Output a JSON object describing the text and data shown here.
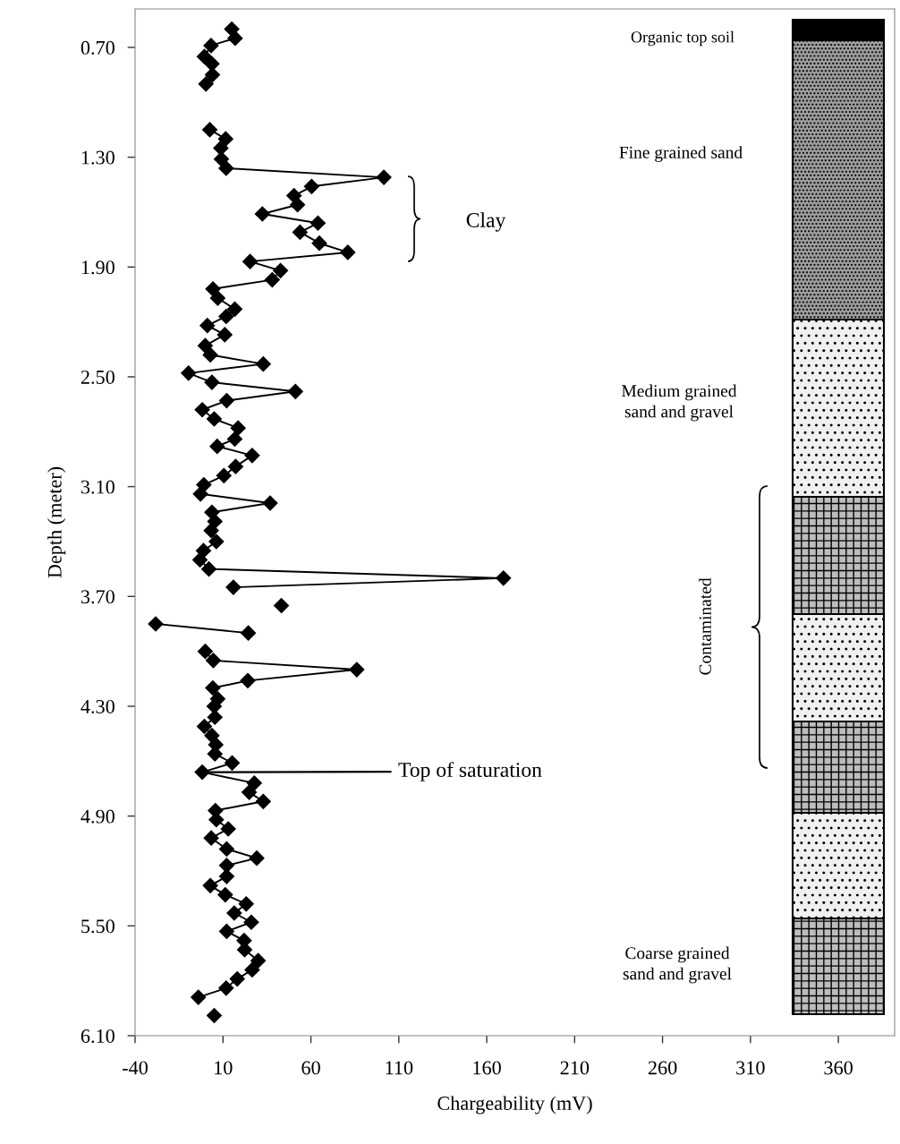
{
  "chart_data": {
    "type": "line",
    "xlabel": "Chargeability (mV)",
    "ylabel": "Depth (meter)",
    "xlim": [
      -40,
      392
    ],
    "xticks": [
      -40,
      10,
      60,
      110,
      160,
      210,
      260,
      310,
      360
    ],
    "ylim": [
      6.1,
      0.49
    ],
    "yticks": [
      {
        "value": 0.7,
        "label": "0.70"
      },
      {
        "value": 1.3,
        "label": "1.30"
      },
      {
        "value": 1.9,
        "label": "1.90"
      },
      {
        "value": 2.5,
        "label": "2.50"
      },
      {
        "value": 3.1,
        "label": "3.10"
      },
      {
        "value": 3.7,
        "label": "3.70"
      },
      {
        "value": 4.3,
        "label": "4.30"
      },
      {
        "value": 4.9,
        "label": "4.90"
      },
      {
        "value": 5.5,
        "label": "5.50"
      },
      {
        "value": 6.1,
        "label": "6.10"
      }
    ],
    "marker": "diamond",
    "line_style": "solid",
    "grid": false,
    "series": [
      {
        "color": "#000000",
        "x": [
          15.0,
          16.9,
          3.2,
          -0.6,
          3.7,
          4.0,
          0.3
        ],
        "values": [
          0.6,
          0.65,
          0.69,
          0.75,
          0.79,
          0.85,
          0.9
        ]
      },
      {
        "color": "#000000",
        "x": [
          2.5,
          11.5,
          8.8,
          9.1,
          11.8,
          101.5,
          60.4,
          50.4,
          52.4,
          32.4,
          64.0,
          53.8,
          64.8,
          81.0,
          25.4,
          42.7,
          38.0,
          4.3,
          7.0,
          16.7,
          11.8,
          1.1,
          11.0,
          -0.1,
          2.8,
          32.9,
          -9.6,
          3.7,
          51.2,
          12.1,
          -1.8,
          5.0,
          18.6,
          16.7,
          6.7,
          26.6,
          17.2,
          10.5,
          -0.9,
          -2.8,
          36.8,
          3.7,
          5.4,
          3.3,
          6.2,
          -1.1,
          -3.1,
          2.0,
          169.5,
          15.9
        ],
        "values": [
          1.15,
          1.2,
          1.25,
          1.31,
          1.36,
          1.41,
          1.46,
          1.51,
          1.56,
          1.61,
          1.66,
          1.71,
          1.77,
          1.82,
          1.87,
          1.92,
          1.97,
          2.02,
          2.07,
          2.13,
          2.17,
          2.22,
          2.27,
          2.33,
          2.38,
          2.43,
          2.48,
          2.53,
          2.58,
          2.63,
          2.68,
          2.73,
          2.78,
          2.84,
          2.88,
          2.93,
          2.99,
          3.04,
          3.09,
          3.14,
          3.19,
          3.24,
          3.29,
          3.34,
          3.4,
          3.45,
          3.5,
          3.55,
          3.6,
          3.65
        ]
      },
      {
        "color": "#000000",
        "x": [
          43.2
        ],
        "values": [
          3.75
        ]
      },
      {
        "color": "#000000",
        "x": [
          -28.3,
          24.4
        ],
        "values": [
          3.85,
          3.9
        ]
      },
      {
        "color": "#000000",
        "x": [
          -0.1,
          4.5,
          86.1,
          24.1,
          4.2,
          7.0,
          5.0,
          5.4,
          -0.6,
          3.7,
          5.9,
          5.4,
          15.2,
          -1.8,
          27.8,
          24.9,
          32.9,
          5.7,
          6.2,
          13.0,
          3.3,
          12.1,
          29.2,
          12.1,
          12.1,
          2.8,
          11.3,
          23.2,
          16.4,
          26.1,
          12.1,
          22.0,
          22.3,
          30.0,
          26.6,
          18.1,
          11.8,
          -4.0
        ],
        "values": [
          4.0,
          4.05,
          4.1,
          4.16,
          4.2,
          4.26,
          4.3,
          4.36,
          4.41,
          4.46,
          4.51,
          4.56,
          4.61,
          4.66,
          4.72,
          4.77,
          4.82,
          4.87,
          4.92,
          4.97,
          5.02,
          5.08,
          5.13,
          5.17,
          5.23,
          5.28,
          5.33,
          5.38,
          5.43,
          5.48,
          5.53,
          5.58,
          5.63,
          5.69,
          5.74,
          5.79,
          5.84,
          5.89
        ]
      },
      {
        "color": "#000000",
        "x": [
          5.0
        ],
        "values": [
          5.99
        ]
      }
    ],
    "annotations": [
      "Organic top soil",
      "Fine grained sand",
      "Medium grained\nsand and gravel",
      "Contaminated",
      "Coarse grained\nsand and gravel",
      "Clay",
      {
        "text": "Top of saturation",
        "x": 2,
        "y": 4.66
      }
    ]
  }
}
